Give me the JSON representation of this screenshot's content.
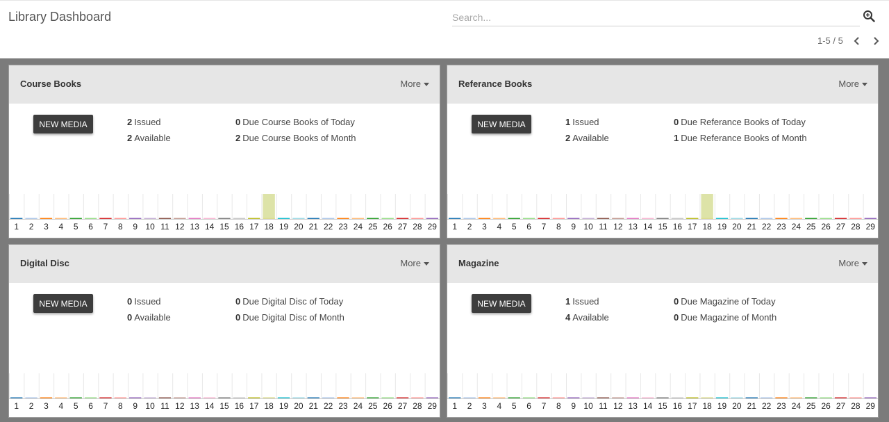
{
  "header": {
    "title": "Library Dashboard",
    "search_placeholder": "Search...",
    "pager": "1-5 / 5"
  },
  "cards": [
    {
      "title": "Course Books",
      "more_label": "More",
      "button_label": "NEW MEDIA",
      "issued_count": "2",
      "issued_label": "Issued",
      "available_count": "2",
      "available_label": "Available",
      "due_today_count": "0",
      "due_today_label": "Due Course Books of Today",
      "due_month_count": "2",
      "due_month_label": "Due Course Books of Month",
      "chart_data": {
        "type": "bar",
        "categories": [
          "1",
          "2",
          "3",
          "4",
          "5",
          "6",
          "7",
          "8",
          "9",
          "10",
          "11",
          "12",
          "13",
          "14",
          "15",
          "16",
          "17",
          "18",
          "19",
          "20",
          "21",
          "22",
          "23",
          "24",
          "25",
          "26",
          "27",
          "28",
          "29"
        ],
        "highlight": "18"
      }
    },
    {
      "title": "Referance Books",
      "more_label": "More",
      "button_label": "NEW MEDIA",
      "issued_count": "1",
      "issued_label": "Issued",
      "available_count": "2",
      "available_label": "Available",
      "due_today_count": "0",
      "due_today_label": "Due Referance Books of Today",
      "due_month_count": "1",
      "due_month_label": "Due Referance Books of Month",
      "chart_data": {
        "type": "bar",
        "categories": [
          "1",
          "2",
          "3",
          "4",
          "5",
          "6",
          "7",
          "8",
          "9",
          "10",
          "11",
          "12",
          "13",
          "14",
          "15",
          "16",
          "17",
          "18",
          "19",
          "20",
          "21",
          "22",
          "23",
          "24",
          "25",
          "26",
          "27",
          "28",
          "29"
        ],
        "highlight": "18"
      }
    },
    {
      "title": "Digital Disc",
      "more_label": "More",
      "button_label": "NEW MEDIA",
      "issued_count": "0",
      "issued_label": "Issued",
      "available_count": "0",
      "available_label": "Available",
      "due_today_count": "0",
      "due_today_label": "Due Digital Disc of Today",
      "due_month_count": "0",
      "due_month_label": "Due Digital Disc of Month",
      "chart_data": {
        "type": "bar",
        "categories": [
          "1",
          "2",
          "3",
          "4",
          "5",
          "6",
          "7",
          "8",
          "9",
          "10",
          "11",
          "12",
          "13",
          "14",
          "15",
          "16",
          "17",
          "18",
          "19",
          "20",
          "21",
          "22",
          "23",
          "24",
          "25",
          "26",
          "27",
          "28",
          "29"
        ],
        "highlight": null
      }
    },
    {
      "title": "Magazine",
      "more_label": "More",
      "button_label": "NEW MEDIA",
      "issued_count": "1",
      "issued_label": "Issued",
      "available_count": "4",
      "available_label": "Available",
      "due_today_count": "0",
      "due_today_label": "Due Magazine of Today",
      "due_month_count": "0",
      "due_month_label": "Due Magazine of Month",
      "chart_data": {
        "type": "bar",
        "categories": [
          "1",
          "2",
          "3",
          "4",
          "5",
          "6",
          "7",
          "8",
          "9",
          "10",
          "11",
          "12",
          "13",
          "14",
          "15",
          "16",
          "17",
          "18",
          "19",
          "20",
          "21",
          "22",
          "23",
          "24",
          "25",
          "26",
          "27",
          "28",
          "29"
        ],
        "highlight": null
      }
    }
  ],
  "colors": {
    "highlight": "#dde3a8",
    "series": [
      "#1f77b4",
      "#aec7e8",
      "#ff7f0e",
      "#ffbb78",
      "#2ca02c",
      "#98df8a",
      "#d62728",
      "#ff9896",
      "#9467bd",
      "#c5b0d5",
      "#8c564b",
      "#c49c94",
      "#e377c2",
      "#f7b6d2",
      "#7f7f7f",
      "#c7c7c7",
      "#bcbd22",
      "#dbdb8d",
      "#17becf",
      "#9edae5",
      "#1f77b4",
      "#aec7e8",
      "#ff7f0e",
      "#ffbb78",
      "#2ca02c",
      "#98df8a",
      "#d62728",
      "#ff9896",
      "#9467bd"
    ]
  }
}
